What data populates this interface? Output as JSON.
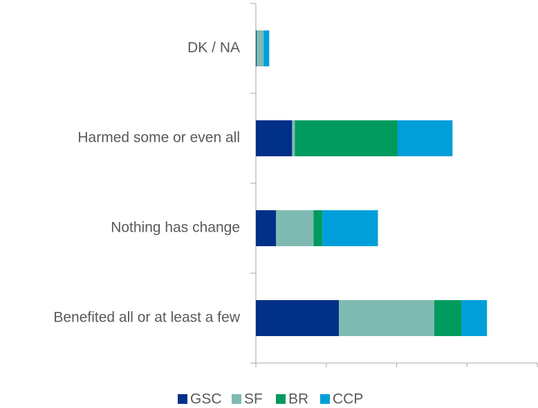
{
  "chart_data": {
    "type": "stacked_barh",
    "categories": [
      "DK / NA",
      "Harmed some or even all",
      "Nothing has change",
      "Benefited all or at least a few"
    ],
    "series": [
      {
        "name": "GSC",
        "color": "#003087",
        "values": [
          0.2,
          10.3,
          5.7,
          23.6
        ]
      },
      {
        "name": "SF",
        "color": "#7fbab2",
        "values": [
          2,
          0.8,
          10.7,
          27.1
        ]
      },
      {
        "name": "BR",
        "color": "#009a5e",
        "values": [
          0,
          29.2,
          2.5,
          7.8
        ]
      },
      {
        "name": "CCP",
        "color": "#009fda",
        "values": [
          1.6,
          15.6,
          15.8,
          7.2
        ]
      }
    ],
    "xlim": [
      0,
      80
    ],
    "xticks": [
      0,
      20,
      40,
      60,
      80
    ],
    "legend": "bottom"
  }
}
